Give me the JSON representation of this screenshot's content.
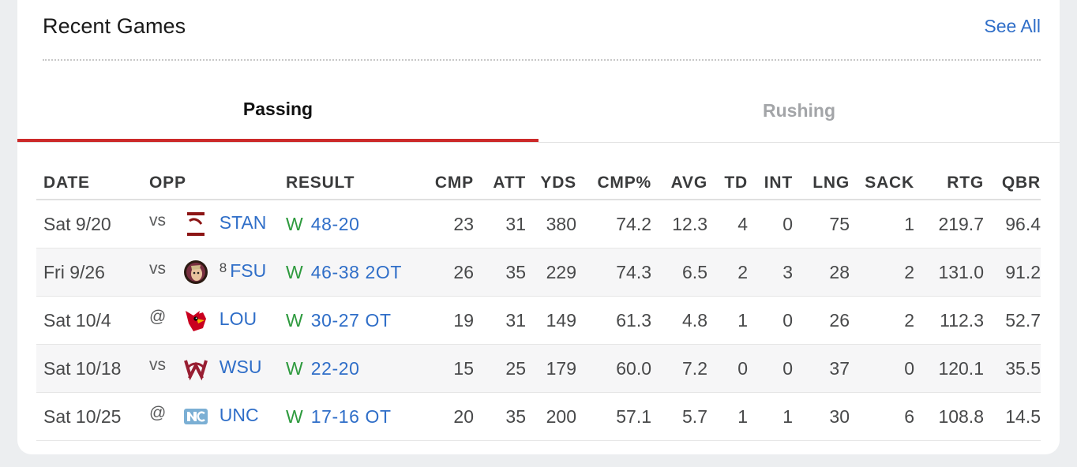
{
  "section": {
    "title": "Recent Games",
    "see_all": "See All"
  },
  "tabs": [
    {
      "label": "Passing",
      "active": true
    },
    {
      "label": "Rushing",
      "active": false
    }
  ],
  "colors": {
    "accent_tab": "#cc2a2a",
    "link": "#2f6ec8",
    "win": "#2e9a3e"
  },
  "table": {
    "columns": [
      "DATE",
      "OPP",
      "RESULT",
      "CMP",
      "ATT",
      "YDS",
      "CMP%",
      "AVG",
      "TD",
      "INT",
      "LNG",
      "SACK",
      "RTG",
      "QBR"
    ],
    "rows": [
      {
        "date": "Sat 9/20",
        "loc": "vs",
        "logo": "stanford-logo",
        "rank": "",
        "opp": "STAN",
        "wl": "W",
        "score": "48-20",
        "cmp": "23",
        "att": "31",
        "yds": "380",
        "cmp_pct": "74.2",
        "avg": "12.3",
        "td": "4",
        "int": "0",
        "lng": "75",
        "sack": "1",
        "rtg": "219.7",
        "qbr": "96.4"
      },
      {
        "date": "Fri 9/26",
        "loc": "vs",
        "logo": "florida-state-logo",
        "rank": "8",
        "opp": "FSU",
        "wl": "W",
        "score": "46-38 2OT",
        "cmp": "26",
        "att": "35",
        "yds": "229",
        "cmp_pct": "74.3",
        "avg": "6.5",
        "td": "2",
        "int": "3",
        "lng": "28",
        "sack": "2",
        "rtg": "131.0",
        "qbr": "91.2"
      },
      {
        "date": "Sat 10/4",
        "loc": "@",
        "logo": "louisville-logo",
        "rank": "",
        "opp": "LOU",
        "wl": "W",
        "score": "30-27 OT",
        "cmp": "19",
        "att": "31",
        "yds": "149",
        "cmp_pct": "61.3",
        "avg": "4.8",
        "td": "1",
        "int": "0",
        "lng": "26",
        "sack": "2",
        "rtg": "112.3",
        "qbr": "52.7"
      },
      {
        "date": "Sat 10/18",
        "loc": "vs",
        "logo": "washington-state-logo",
        "rank": "",
        "opp": "WSU",
        "wl": "W",
        "score": "22-20",
        "cmp": "15",
        "att": "25",
        "yds": "179",
        "cmp_pct": "60.0",
        "avg": "7.2",
        "td": "0",
        "int": "0",
        "lng": "37",
        "sack": "0",
        "rtg": "120.1",
        "qbr": "35.5"
      },
      {
        "date": "Sat 10/25",
        "loc": "@",
        "logo": "north-carolina-logo",
        "rank": "",
        "opp": "UNC",
        "wl": "W",
        "score": "17-16 OT",
        "cmp": "20",
        "att": "35",
        "yds": "200",
        "cmp_pct": "57.1",
        "avg": "5.7",
        "td": "1",
        "int": "1",
        "lng": "30",
        "sack": "6",
        "rtg": "108.8",
        "qbr": "14.5"
      }
    ]
  }
}
